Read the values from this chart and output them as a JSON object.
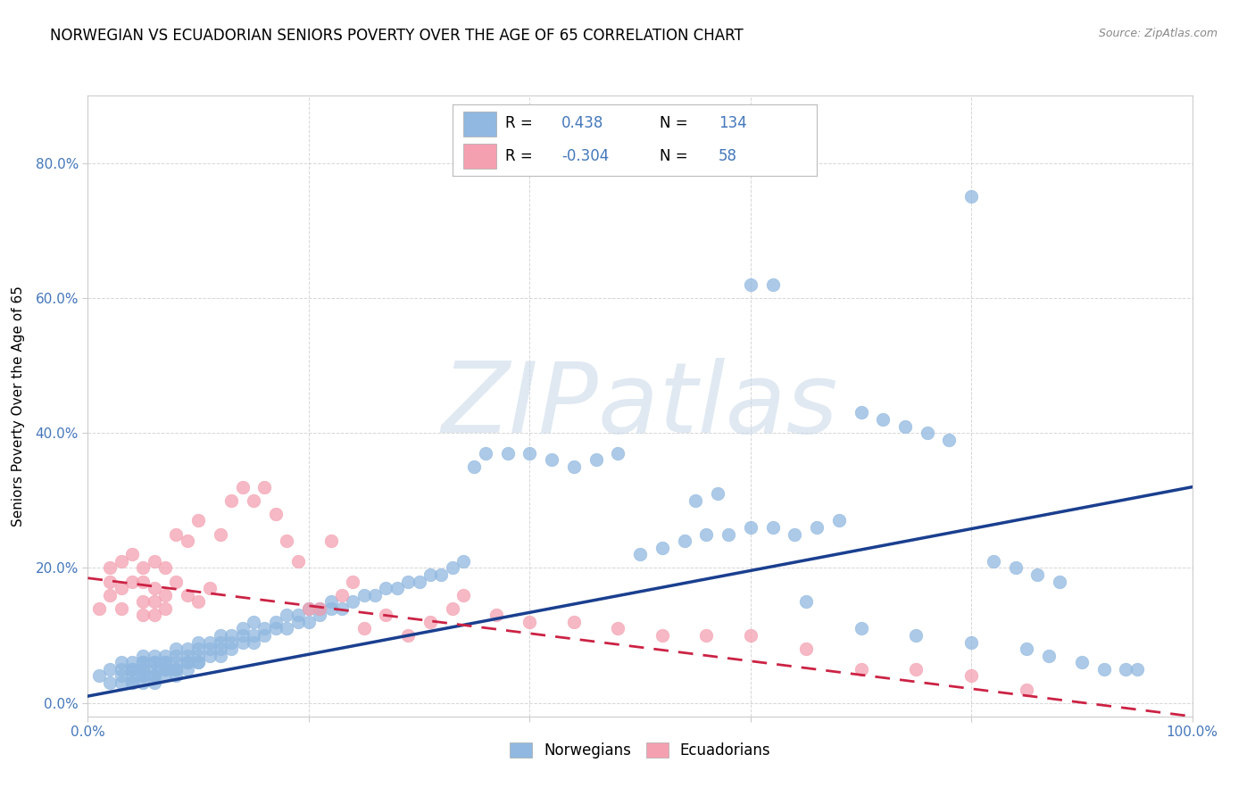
{
  "title": "NORWEGIAN VS ECUADORIAN SENIORS POVERTY OVER THE AGE OF 65 CORRELATION CHART",
  "source": "Source: ZipAtlas.com",
  "ylabel": "Seniors Poverty Over the Age of 65",
  "watermark": "ZIPatlas",
  "norwegian_R": 0.438,
  "norwegian_N": 134,
  "ecuadorian_R": -0.304,
  "ecuadorian_N": 58,
  "norwegian_color": "#90b8e0",
  "ecuadorian_color": "#f4a0b0",
  "norwegian_line_color": "#1a3f8f",
  "ecuadorian_line_color": "#cc2244",
  "background_color": "#ffffff",
  "grid_color": "#cccccc",
  "xlim": [
    0.0,
    1.0
  ],
  "ylim": [
    -0.02,
    0.9
  ],
  "tick_color": "#4477BB",
  "title_fontsize": 12,
  "label_fontsize": 11,
  "tick_fontsize": 11,
  "nor_trend_x0": 0.0,
  "nor_trend_y0": 0.01,
  "nor_trend_x1": 1.0,
  "nor_trend_y1": 0.32,
  "ecu_trend_x0": 0.0,
  "ecu_trend_y0": 0.185,
  "ecu_trend_x1": 1.0,
  "ecu_trend_y1": -0.02,
  "norwegian_x": [
    0.01,
    0.02,
    0.02,
    0.03,
    0.03,
    0.03,
    0.03,
    0.04,
    0.04,
    0.04,
    0.04,
    0.04,
    0.04,
    0.05,
    0.05,
    0.05,
    0.05,
    0.05,
    0.05,
    0.05,
    0.05,
    0.06,
    0.06,
    0.06,
    0.06,
    0.06,
    0.06,
    0.06,
    0.07,
    0.07,
    0.07,
    0.07,
    0.07,
    0.07,
    0.08,
    0.08,
    0.08,
    0.08,
    0.08,
    0.08,
    0.09,
    0.09,
    0.09,
    0.09,
    0.09,
    0.1,
    0.1,
    0.1,
    0.1,
    0.1,
    0.11,
    0.11,
    0.11,
    0.12,
    0.12,
    0.12,
    0.12,
    0.13,
    0.13,
    0.13,
    0.14,
    0.14,
    0.14,
    0.15,
    0.15,
    0.15,
    0.16,
    0.16,
    0.17,
    0.17,
    0.18,
    0.18,
    0.19,
    0.19,
    0.2,
    0.2,
    0.21,
    0.21,
    0.22,
    0.22,
    0.23,
    0.24,
    0.25,
    0.26,
    0.27,
    0.28,
    0.29,
    0.3,
    0.31,
    0.32,
    0.33,
    0.34,
    0.35,
    0.36,
    0.38,
    0.4,
    0.42,
    0.44,
    0.46,
    0.48,
    0.5,
    0.52,
    0.54,
    0.56,
    0.58,
    0.6,
    0.62,
    0.64,
    0.66,
    0.68,
    0.7,
    0.72,
    0.74,
    0.76,
    0.78,
    0.8,
    0.82,
    0.84,
    0.86,
    0.88,
    0.55,
    0.57,
    0.6,
    0.62,
    0.65,
    0.7,
    0.75,
    0.8,
    0.85,
    0.87,
    0.9,
    0.92,
    0.94,
    0.95
  ],
  "norwegian_y": [
    0.04,
    0.03,
    0.05,
    0.03,
    0.04,
    0.05,
    0.06,
    0.03,
    0.04,
    0.05,
    0.06,
    0.03,
    0.05,
    0.03,
    0.04,
    0.05,
    0.06,
    0.04,
    0.05,
    0.06,
    0.07,
    0.03,
    0.04,
    0.05,
    0.06,
    0.07,
    0.04,
    0.06,
    0.04,
    0.05,
    0.06,
    0.07,
    0.05,
    0.06,
    0.04,
    0.05,
    0.06,
    0.07,
    0.08,
    0.05,
    0.05,
    0.06,
    0.07,
    0.08,
    0.06,
    0.06,
    0.07,
    0.08,
    0.09,
    0.06,
    0.07,
    0.08,
    0.09,
    0.07,
    0.08,
    0.09,
    0.1,
    0.08,
    0.09,
    0.1,
    0.09,
    0.1,
    0.11,
    0.09,
    0.1,
    0.12,
    0.1,
    0.11,
    0.11,
    0.12,
    0.11,
    0.13,
    0.12,
    0.13,
    0.12,
    0.14,
    0.13,
    0.14,
    0.14,
    0.15,
    0.14,
    0.15,
    0.16,
    0.16,
    0.17,
    0.17,
    0.18,
    0.18,
    0.19,
    0.19,
    0.2,
    0.21,
    0.35,
    0.37,
    0.37,
    0.37,
    0.36,
    0.35,
    0.36,
    0.37,
    0.22,
    0.23,
    0.24,
    0.25,
    0.25,
    0.62,
    0.62,
    0.25,
    0.26,
    0.27,
    0.43,
    0.42,
    0.41,
    0.4,
    0.39,
    0.75,
    0.21,
    0.2,
    0.19,
    0.18,
    0.3,
    0.31,
    0.26,
    0.26,
    0.15,
    0.11,
    0.1,
    0.09,
    0.08,
    0.07,
    0.06,
    0.05,
    0.05,
    0.05
  ],
  "ecuadorian_x": [
    0.01,
    0.02,
    0.02,
    0.02,
    0.03,
    0.03,
    0.03,
    0.04,
    0.04,
    0.05,
    0.05,
    0.05,
    0.05,
    0.06,
    0.06,
    0.06,
    0.06,
    0.07,
    0.07,
    0.07,
    0.08,
    0.08,
    0.09,
    0.09,
    0.1,
    0.1,
    0.11,
    0.12,
    0.13,
    0.14,
    0.15,
    0.16,
    0.17,
    0.18,
    0.19,
    0.2,
    0.21,
    0.22,
    0.23,
    0.24,
    0.25,
    0.27,
    0.29,
    0.31,
    0.33,
    0.34,
    0.37,
    0.4,
    0.44,
    0.48,
    0.52,
    0.56,
    0.6,
    0.65,
    0.7,
    0.75,
    0.8,
    0.85
  ],
  "ecuadorian_y": [
    0.14,
    0.16,
    0.18,
    0.2,
    0.14,
    0.17,
    0.21,
    0.18,
    0.22,
    0.13,
    0.15,
    0.18,
    0.2,
    0.13,
    0.15,
    0.17,
    0.21,
    0.14,
    0.16,
    0.2,
    0.18,
    0.25,
    0.16,
    0.24,
    0.15,
    0.27,
    0.17,
    0.25,
    0.3,
    0.32,
    0.3,
    0.32,
    0.28,
    0.24,
    0.21,
    0.14,
    0.14,
    0.24,
    0.16,
    0.18,
    0.11,
    0.13,
    0.1,
    0.12,
    0.14,
    0.16,
    0.13,
    0.12,
    0.12,
    0.11,
    0.1,
    0.1,
    0.1,
    0.08,
    0.05,
    0.05,
    0.04,
    0.02
  ]
}
